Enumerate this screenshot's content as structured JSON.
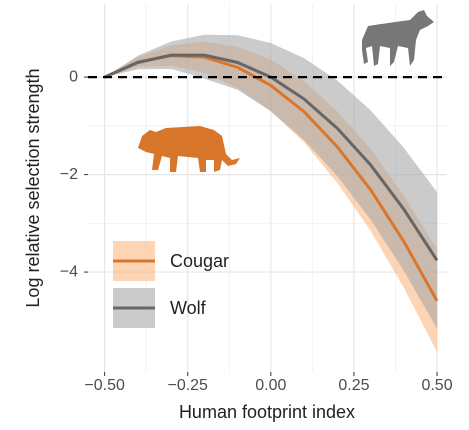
{
  "chart_data": {
    "type": "line",
    "xlabel": "Human footprint index",
    "ylabel": "Log relative selection strength",
    "x": [
      -0.5,
      -0.4,
      -0.3,
      -0.2,
      -0.1,
      0,
      0.1,
      0.2,
      0.3,
      0.4,
      0.5
    ],
    "series": [
      {
        "name": "Cougar",
        "color": "#d8772c",
        "band_color": "#fbb982",
        "values": [
          0,
          0.31,
          0.44,
          0.41,
          0.2,
          -0.17,
          -0.71,
          -1.43,
          -2.31,
          -3.37,
          -4.59
        ],
        "lower": [
          0,
          0.21,
          0.23,
          0.09,
          -0.22,
          -0.7,
          -1.34,
          -2.17,
          -3.15,
          -4.32,
          -5.64
        ],
        "upper": [
          0,
          0.41,
          0.65,
          0.73,
          0.62,
          0.36,
          -0.08,
          -0.7,
          -1.47,
          -2.43,
          -3.54
        ]
      },
      {
        "name": "Wolf",
        "color": "#666666",
        "band_color": "#a9a9a9",
        "values": [
          0,
          0.3,
          0.45,
          0.45,
          0.3,
          0,
          -0.45,
          -1.05,
          -1.8,
          -2.71,
          -3.76
        ],
        "lower": [
          0,
          0.16,
          0.17,
          -0.03,
          -0.26,
          -0.7,
          -1.29,
          -2.03,
          -2.92,
          -3.97,
          -5.16
        ],
        "upper": [
          0,
          0.44,
          0.73,
          0.87,
          0.86,
          0.7,
          0.39,
          -0.07,
          -0.68,
          -1.45,
          -2.36
        ]
      }
    ],
    "reference_line": 0,
    "xlim": [
      -0.55,
      0.53
    ],
    "ylim": [
      -6.05,
      1.5
    ],
    "xticks": [
      {
        "value": -0.5,
        "label": "−0.50"
      },
      {
        "value": -0.25,
        "label": "−0.25"
      },
      {
        "value": 0,
        "label": "0.00"
      },
      {
        "value": 0.25,
        "label": "0.25"
      },
      {
        "value": 0.5,
        "label": "0.50"
      }
    ],
    "yticks": [
      0,
      {
        "value": -2,
        "label": "−2"
      },
      {
        "value": -4,
        "label": "−4"
      }
    ],
    "grid": true
  }
}
